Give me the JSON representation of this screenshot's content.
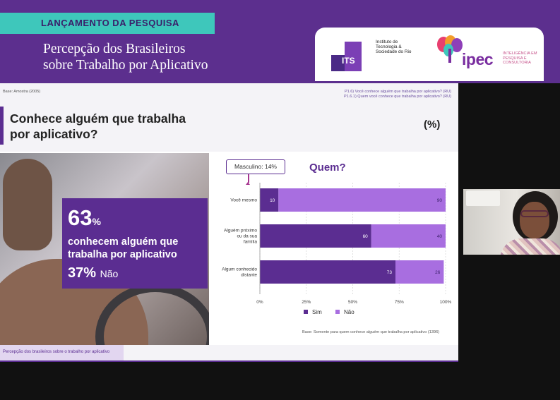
{
  "banner": {
    "launch_label": "LANÇAMENTO DA PESQUISA",
    "title_line1": "Percepção dos Brasileiros",
    "title_line2": "sobre Trabalho por Aplicativo"
  },
  "logos": {
    "its_mark": "ITS",
    "its_name": "Instituto de Tecnologia & Sociedade do Rio",
    "ipec_mark": "ipec",
    "ipec_tagline": "INTELIGÊNCIA EM PESQUISA E CONSULTORIA"
  },
  "slide": {
    "base_note": "Base: Amostra (2005)",
    "question_1": "P1.6) Você conhece alguém que trabalha por aplicativo? (RU)",
    "question_2": "P1.6.1) Quem você conhece que trabalha por aplicativo? (RU)",
    "title": "Conhece alguém que trabalha por aplicativo?",
    "percent_symbol": "(%)",
    "stat": {
      "value": "63",
      "unit": "%",
      "desc_line1": "conhecem alguém que",
      "desc_line2": "trabalha por aplicativo",
      "no_value": "37%",
      "no_label": "Não"
    },
    "callout": "Masculino: 14%",
    "chart_base_note": "Base: Somente para quem conhece alguém que trabalha por aplicativo (1396)",
    "footer": "Percepção dos brasileiros sobre o trabalho por aplicativo"
  },
  "chart_data": {
    "type": "bar",
    "orientation": "horizontal",
    "stacked": true,
    "title": "Quem?",
    "categories": [
      "Você mesmo",
      "Alguém próximo ou da sua família",
      "Algum conhecido distante"
    ],
    "series": [
      {
        "name": "Sim",
        "values": [
          10,
          60,
          73
        ],
        "color": "#5b2d91"
      },
      {
        "name": "Não",
        "values": [
          90,
          40,
          26
        ],
        "color": "#a86ee0"
      }
    ],
    "x_ticks": [
      "0%",
      "25%",
      "50%",
      "75%",
      "100%"
    ],
    "xlim": [
      0,
      100
    ],
    "grid": true,
    "legend": "bottom"
  }
}
